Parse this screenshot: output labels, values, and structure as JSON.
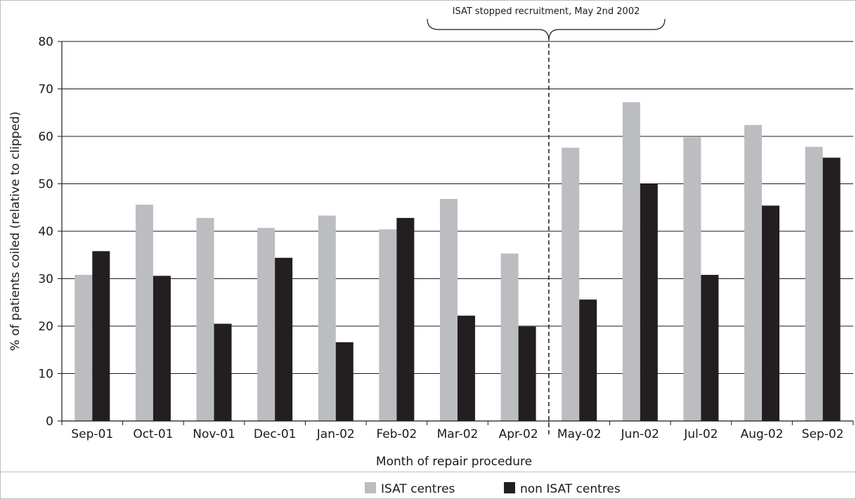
{
  "chart_data": {
    "type": "bar",
    "title": "",
    "xlabel": "Month of repair procedure",
    "ylabel": "% of patients coiled (relative to clipped)",
    "ylim": [
      0,
      80
    ],
    "yticks": [
      0,
      10,
      20,
      30,
      40,
      50,
      60,
      70,
      80
    ],
    "grid": true,
    "legend_position": "bottom",
    "categories": [
      "Sep-01",
      "Oct-01",
      "Nov-01",
      "Dec-01",
      "Jan-02",
      "Feb-02",
      "Mar-02",
      "Apr-02",
      "May-02",
      "Jun-02",
      "Jul-02",
      "Aug-02",
      "Sep-02"
    ],
    "series": [
      {
        "name": "ISAT centres",
        "color": "#bcbdc0",
        "values": [
          30.8,
          45.6,
          42.8,
          40.7,
          43.3,
          40.4,
          46.8,
          35.3,
          57.6,
          67.2,
          59.8,
          62.4,
          57.8
        ]
      },
      {
        "name": "non ISAT centres",
        "color": "#231f20",
        "values": [
          35.8,
          30.6,
          20.5,
          34.4,
          16.6,
          42.8,
          22.2,
          19.9,
          25.6,
          50.0,
          30.8,
          45.4,
          55.5
        ]
      }
    ],
    "annotation": {
      "text": "ISAT stopped recruitment, May 2nd 2002",
      "between_categories": [
        "Apr-02",
        "May-02"
      ]
    }
  }
}
